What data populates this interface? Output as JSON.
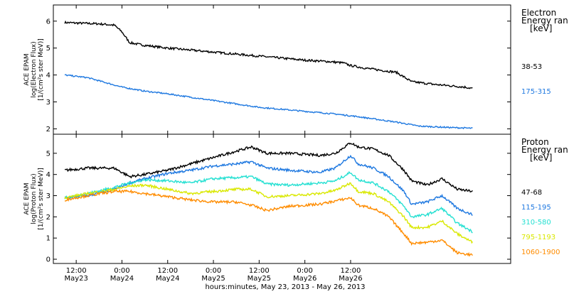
{
  "chart_data": [
    {
      "type": "line",
      "ylabel_lines": [
        "ACE EPAM",
        "log(Electron Flux)",
        "[1/(cm²s ster MeV)]"
      ],
      "legend_title": [
        "Electron",
        "Energy ran",
        "[keV]"
      ],
      "ylim": [
        1.8,
        6.6
      ],
      "yticks": [
        "2",
        "3",
        "4",
        "5",
        "6"
      ],
      "x_unit": "hours since 2013-05-23 00:00 UT",
      "series": [
        {
          "name": "38-53",
          "color": "#000000",
          "noise": 0.04,
          "points": [
            [
              9,
              5.95
            ],
            [
              12,
              5.93
            ],
            [
              18,
              5.9
            ],
            [
              22,
              5.85
            ],
            [
              24,
              5.6
            ],
            [
              26,
              5.2
            ],
            [
              30,
              5.1
            ],
            [
              36,
              5.0
            ],
            [
              48,
              4.85
            ],
            [
              60,
              4.7
            ],
            [
              68,
              4.6
            ],
            [
              72,
              4.55
            ],
            [
              78,
              4.5
            ],
            [
              82,
              4.45
            ],
            [
              84,
              4.35
            ],
            [
              88,
              4.25
            ],
            [
              96,
              4.1
            ],
            [
              100,
              3.75
            ],
            [
              106,
              3.65
            ],
            [
              110,
              3.6
            ],
            [
              114,
              3.55
            ],
            [
              116,
              3.5
            ]
          ]
        },
        {
          "name": "175-315",
          "color": "#1e78e0",
          "noise": 0.025,
          "points": [
            [
              9,
              4.0
            ],
            [
              15,
              3.9
            ],
            [
              24,
              3.55
            ],
            [
              30,
              3.4
            ],
            [
              36,
              3.3
            ],
            [
              48,
              3.05
            ],
            [
              60,
              2.8
            ],
            [
              72,
              2.65
            ],
            [
              80,
              2.55
            ],
            [
              86,
              2.45
            ],
            [
              96,
              2.25
            ],
            [
              102,
              2.1
            ],
            [
              110,
              2.05
            ],
            [
              116,
              2.02
            ]
          ]
        }
      ]
    },
    {
      "type": "line",
      "ylabel_lines": [
        "ACE EPAM",
        "log(Proton Flux)",
        "[1/(cm²s ster MeV)]"
      ],
      "legend_title": [
        "Proton",
        "Energy ran",
        "[keV]"
      ],
      "ylim": [
        -0.2,
        5.9
      ],
      "yticks": [
        "0",
        "1",
        "2",
        "3",
        "4",
        "5"
      ],
      "series": [
        {
          "name": "47-68",
          "color": "#000000",
          "noise": 0.06,
          "points": [
            [
              9,
              4.2
            ],
            [
              15,
              4.3
            ],
            [
              22,
              4.3
            ],
            [
              26,
              3.9
            ],
            [
              30,
              4.0
            ],
            [
              36,
              4.2
            ],
            [
              42,
              4.5
            ],
            [
              48,
              4.8
            ],
            [
              54,
              5.1
            ],
            [
              58,
              5.3
            ],
            [
              62,
              5.0
            ],
            [
              68,
              5.0
            ],
            [
              76,
              4.9
            ],
            [
              80,
              5.0
            ],
            [
              84,
              5.5
            ],
            [
              86,
              5.3
            ],
            [
              90,
              5.2
            ],
            [
              94,
              4.9
            ],
            [
              98,
              4.2
            ],
            [
              100,
              3.7
            ],
            [
              104,
              3.5
            ],
            [
              108,
              3.8
            ],
            [
              112,
              3.3
            ],
            [
              116,
              3.2
            ]
          ]
        },
        {
          "name": "115-195",
          "color": "#1e78e0",
          "noise": 0.06,
          "points": [
            [
              9,
              2.9
            ],
            [
              15,
              3.0
            ],
            [
              22,
              3.3
            ],
            [
              26,
              3.6
            ],
            [
              30,
              3.8
            ],
            [
              36,
              4.05
            ],
            [
              42,
              4.2
            ],
            [
              48,
              4.4
            ],
            [
              54,
              4.5
            ],
            [
              58,
              4.6
            ],
            [
              62,
              4.3
            ],
            [
              68,
              4.2
            ],
            [
              76,
              4.1
            ],
            [
              80,
              4.3
            ],
            [
              84,
              4.9
            ],
            [
              86,
              4.5
            ],
            [
              90,
              4.3
            ],
            [
              94,
              3.9
            ],
            [
              98,
              3.2
            ],
            [
              100,
              2.6
            ],
            [
              104,
              2.7
            ],
            [
              108,
              3.0
            ],
            [
              112,
              2.4
            ],
            [
              116,
              2.1
            ]
          ]
        },
        {
          "name": "310-580",
          "color": "#25e0d2",
          "noise": 0.06,
          "points": [
            [
              9,
              2.9
            ],
            [
              15,
              3.1
            ],
            [
              22,
              3.4
            ],
            [
              26,
              3.6
            ],
            [
              30,
              3.75
            ],
            [
              36,
              3.7
            ],
            [
              42,
              3.6
            ],
            [
              48,
              3.8
            ],
            [
              54,
              3.85
            ],
            [
              58,
              3.9
            ],
            [
              62,
              3.55
            ],
            [
              68,
              3.5
            ],
            [
              76,
              3.6
            ],
            [
              80,
              3.7
            ],
            [
              84,
              4.1
            ],
            [
              86,
              3.75
            ],
            [
              90,
              3.6
            ],
            [
              94,
              3.2
            ],
            [
              98,
              2.5
            ],
            [
              100,
              2.0
            ],
            [
              104,
              2.1
            ],
            [
              108,
              2.4
            ],
            [
              112,
              1.7
            ],
            [
              116,
              1.3
            ]
          ]
        },
        {
          "name": "795-1193",
          "color": "#d9e800",
          "noise": 0.06,
          "points": [
            [
              9,
              2.9
            ],
            [
              15,
              3.1
            ],
            [
              22,
              3.3
            ],
            [
              26,
              3.45
            ],
            [
              30,
              3.5
            ],
            [
              36,
              3.3
            ],
            [
              42,
              3.1
            ],
            [
              48,
              3.2
            ],
            [
              54,
              3.3
            ],
            [
              58,
              3.3
            ],
            [
              62,
              2.95
            ],
            [
              68,
              3.0
            ],
            [
              76,
              3.1
            ],
            [
              80,
              3.25
            ],
            [
              84,
              3.6
            ],
            [
              86,
              3.2
            ],
            [
              90,
              3.1
            ],
            [
              94,
              2.7
            ],
            [
              98,
              2.0
            ],
            [
              100,
              1.5
            ],
            [
              104,
              1.5
            ],
            [
              108,
              1.8
            ],
            [
              112,
              1.2
            ],
            [
              116,
              0.8
            ]
          ]
        },
        {
          "name": "1060-1900",
          "color": "#ff8c00",
          "noise": 0.06,
          "points": [
            [
              9,
              2.8
            ],
            [
              15,
              3.0
            ],
            [
              22,
              3.2
            ],
            [
              26,
              3.2
            ],
            [
              30,
              3.1
            ],
            [
              36,
              2.95
            ],
            [
              42,
              2.8
            ],
            [
              48,
              2.7
            ],
            [
              54,
              2.7
            ],
            [
              58,
              2.55
            ],
            [
              62,
              2.3
            ],
            [
              68,
              2.5
            ],
            [
              76,
              2.6
            ],
            [
              80,
              2.75
            ],
            [
              84,
              2.9
            ],
            [
              86,
              2.55
            ],
            [
              90,
              2.4
            ],
            [
              94,
              2.0
            ],
            [
              98,
              1.2
            ],
            [
              100,
              0.75
            ],
            [
              104,
              0.8
            ],
            [
              108,
              0.9
            ],
            [
              112,
              0.3
            ],
            [
              116,
              0.2
            ]
          ]
        }
      ]
    }
  ],
  "x_axis": {
    "xlim": [
      6,
      126
    ],
    "ticks": [
      {
        "x": 12,
        "top": "12:00",
        "bottom": "May23"
      },
      {
        "x": 24,
        "top": "0:00",
        "bottom": "May24"
      },
      {
        "x": 36,
        "top": "12:00",
        "bottom": "May24"
      },
      {
        "x": 48,
        "top": "0:00",
        "bottom": "May25"
      },
      {
        "x": 60,
        "top": "12:00",
        "bottom": "May25"
      },
      {
        "x": 72,
        "top": "0:00",
        "bottom": "May26"
      },
      {
        "x": 84,
        "top": "12:00",
        "bottom": "May26"
      }
    ],
    "xlabel": "hours:minutes, May 23, 2013 - May 26, 2013"
  }
}
